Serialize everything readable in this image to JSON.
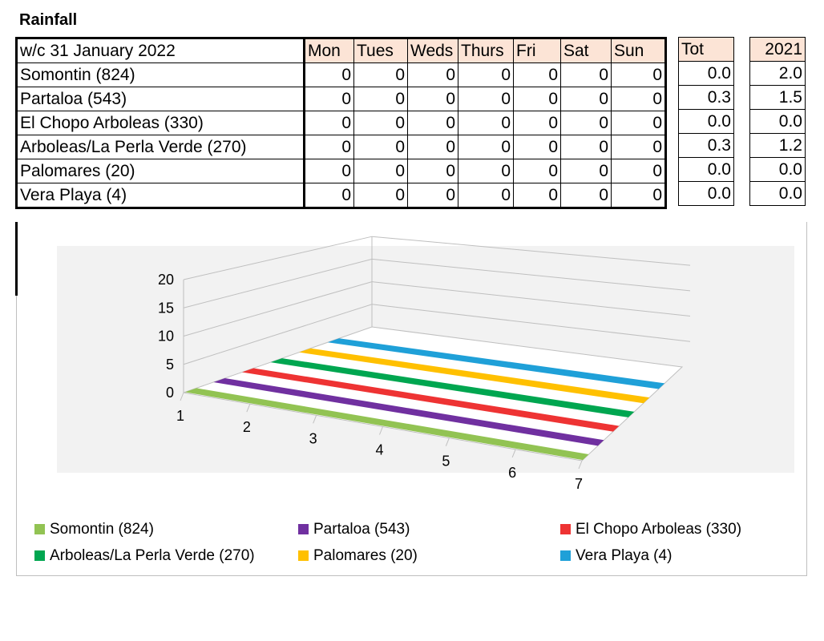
{
  "title": "Rainfall",
  "table": {
    "week_label": "w/c 31 January 2022",
    "days": [
      "Mon",
      "Tues",
      "Weds",
      "Thurs",
      "Fri",
      "Sat",
      "Sun"
    ],
    "tot_label": "Tot",
    "year_label": "2021",
    "rows": [
      {
        "name": "Somontin (824)",
        "days": [
          "0",
          "0",
          "0",
          "0",
          "0",
          "0",
          "0"
        ],
        "tot": "0.0",
        "year": "2.0"
      },
      {
        "name": "Partaloa (543)",
        "days": [
          "0",
          "0",
          "0",
          "0",
          "0",
          "0",
          "0"
        ],
        "tot": "0.3",
        "year": "1.5"
      },
      {
        "name": "El Chopo Arboleas (330)",
        "days": [
          "0",
          "0",
          "0",
          "0",
          "0",
          "0",
          "0"
        ],
        "tot": "0.0",
        "year": "0.0"
      },
      {
        "name": "Arboleas/La Perla Verde (270)",
        "days": [
          "0",
          "0",
          "0",
          "0",
          "0",
          "0",
          "0"
        ],
        "tot": "0.3",
        "year": "1.2"
      },
      {
        "name": "Palomares (20)",
        "days": [
          "0",
          "0",
          "0",
          "0",
          "0",
          "0",
          "0"
        ],
        "tot": "0.0",
        "year": "0.0"
      },
      {
        "name": "Vera Playa (4)",
        "days": [
          "0",
          "0",
          "0",
          "0",
          "0",
          "0",
          "0"
        ],
        "tot": "0.0",
        "year": "0.0"
      }
    ]
  },
  "chart_data": {
    "type": "bar",
    "subtype": "3d-column",
    "title": "",
    "xlabel": "",
    "ylabel": "",
    "categories": [
      "1",
      "2",
      "3",
      "4",
      "5",
      "6",
      "7"
    ],
    "yticks": [
      "0",
      "5",
      "10",
      "15",
      "20"
    ],
    "ylim": [
      0,
      20
    ],
    "grid": true,
    "legend_position": "bottom",
    "series": [
      {
        "name": "Somontin (824)",
        "color": "#92c353",
        "values": [
          0,
          0,
          0,
          0,
          0,
          0,
          0
        ]
      },
      {
        "name": "Partaloa (543)",
        "color": "#7030a0",
        "values": [
          0,
          0,
          0,
          0,
          0,
          0,
          0
        ]
      },
      {
        "name": "El Chopo Arboleas (330)",
        "color": "#ee3333",
        "values": [
          0,
          0,
          0,
          0,
          0,
          0,
          0
        ]
      },
      {
        "name": "Arboleas/La Perla Verde (270)",
        "color": "#00a650",
        "values": [
          0,
          0,
          0,
          0,
          0,
          0,
          0
        ]
      },
      {
        "name": "Palomares (20)",
        "color": "#ffc000",
        "values": [
          0,
          0,
          0,
          0,
          0,
          0,
          0
        ]
      },
      {
        "name": "Vera Playa (4)",
        "color": "#1fa0d8",
        "values": [
          0,
          0,
          0,
          0,
          0,
          0,
          0
        ]
      }
    ]
  }
}
